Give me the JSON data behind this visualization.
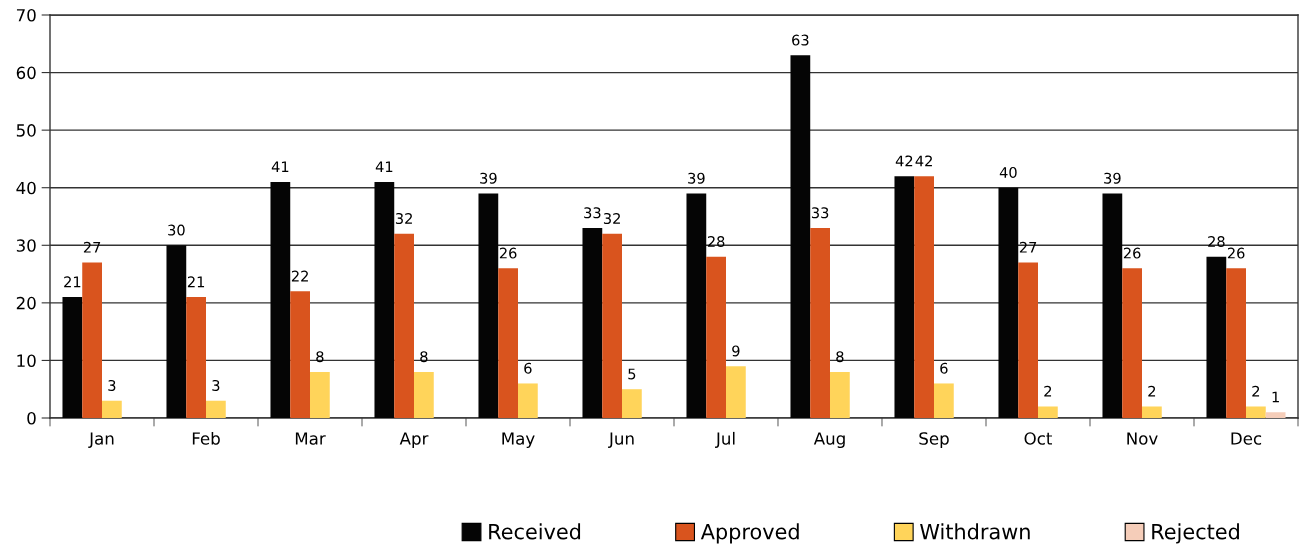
{
  "chart_data": {
    "type": "bar",
    "categories": [
      "Jan",
      "Feb",
      "Mar",
      "Apr",
      "May",
      "Jun",
      "Jul",
      "Aug",
      "Sep",
      "Oct",
      "Nov",
      "Dec"
    ],
    "series": [
      {
        "name": "Received",
        "color": "#050505",
        "values": [
          21,
          30,
          41,
          41,
          39,
          33,
          39,
          63,
          42,
          40,
          39,
          28
        ]
      },
      {
        "name": "Approved",
        "color": "#d9541e",
        "values": [
          27,
          21,
          22,
          32,
          26,
          32,
          28,
          33,
          42,
          27,
          26,
          26
        ]
      },
      {
        "name": "Withdrawn",
        "color": "#ffd45a",
        "values": [
          3,
          3,
          8,
          8,
          6,
          5,
          9,
          8,
          6,
          2,
          2,
          2
        ]
      },
      {
        "name": "Rejected",
        "color": "#f5cdb9",
        "values": [
          null,
          null,
          null,
          null,
          null,
          null,
          null,
          null,
          null,
          null,
          null,
          1
        ]
      }
    ],
    "ylim": [
      0,
      70
    ],
    "yticks": [
      0,
      10,
      20,
      30,
      40,
      50,
      60,
      70
    ],
    "grid": "y",
    "legend": "bottom",
    "data_labels": true
  }
}
